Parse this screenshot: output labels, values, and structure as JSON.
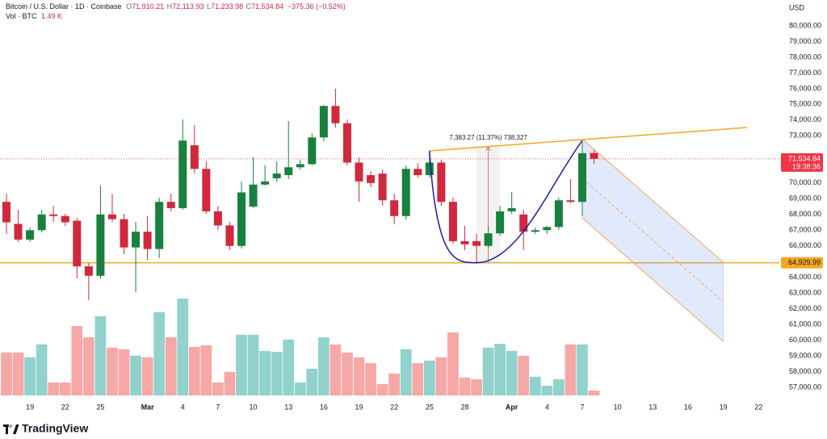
{
  "chart_data": {
    "type": "candlestick",
    "title": "Bitcoin / U.S. Dollar · 1D · Coinbase",
    "legend": {
      "open_key": "O",
      "open": "71,910.21",
      "high_key": "H",
      "high": "72,113.93",
      "low_key": "L",
      "low": "71,233.98",
      "close_key": "C",
      "close": "71,534.84",
      "change": "−375.36 (−0.52%)"
    },
    "volume_legend": {
      "label": "Vol · BTC",
      "value": "1.49 K"
    },
    "currency": "USD",
    "branding": "TradingView",
    "categories": [
      null,
      null,
      "19",
      null,
      null,
      "22",
      null,
      null,
      "25",
      null,
      null,
      null,
      "Mar",
      null,
      null,
      "4",
      null,
      null,
      "7",
      null,
      null,
      "10",
      null,
      null,
      "13",
      null,
      null,
      "16",
      null,
      null,
      "19",
      null,
      null,
      "22",
      null,
      null,
      "25",
      null,
      null,
      "28",
      null,
      null,
      null,
      "Apr",
      null,
      null,
      "4",
      null,
      null,
      "7",
      null,
      null,
      "10",
      null,
      null,
      "13",
      null,
      null,
      "16",
      null,
      null,
      "19",
      null,
      null,
      "22",
      null
    ],
    "open": [
      68800,
      67400,
      66400,
      67000,
      68000,
      67900,
      67600,
      64700,
      64100,
      68000,
      67700,
      65900,
      66900,
      65800,
      68800,
      68400,
      72400,
      70900,
      68200,
      67300,
      66000,
      68500,
      69900,
      70300,
      70500,
      71000,
      71200,
      72900,
      74900,
      73800,
      71300,
      70500,
      70600,
      68900,
      67900,
      70900,
      70500,
      71300,
      68800,
      66300,
      66300,
      66000,
      66800,
      68200,
      68000,
      66900,
      67000,
      67200,
      68900,
      68800,
      71910.21,
      null,
      null,
      null,
      null,
      null,
      null,
      null,
      null,
      null,
      null,
      null,
      null,
      null,
      null,
      null
    ],
    "high": [
      69320,
      68300,
      67170,
      68300,
      68550,
      68040,
      67780,
      64900,
      69840,
      69320,
      68040,
      67530,
      67890,
      69070,
      69320,
      74050,
      73690,
      71380,
      68550,
      67530,
      70090,
      71630,
      71120,
      71380,
      73940,
      71480,
      73170,
      74970,
      76000,
      74050,
      71630,
      70760,
      70860,
      69320,
      71120,
      71270,
      72040,
      71480,
      69070,
      67270,
      66760,
      67270,
      68550,
      69430,
      68300,
      67170,
      67270,
      69070,
      70250,
      72660,
      72113.93,
      null,
      null,
      null,
      null,
      null,
      null,
      null,
      null,
      null,
      null,
      null,
      null,
      null,
      null,
      null
    ],
    "low": [
      66760,
      66240,
      66240,
      66860,
      67530,
      67270,
      63930,
      62550,
      63930,
      67530,
      65470,
      63060,
      65110,
      65220,
      68190,
      68300,
      70610,
      68040,
      67010,
      65730,
      65830,
      68400,
      69840,
      70090,
      70250,
      70860,
      71120,
      72660,
      73530,
      71120,
      68810,
      69730,
      68550,
      67370,
      67680,
      70350,
      70350,
      68550,
      66140,
      65730,
      64960,
      65830,
      66650,
      68040,
      65730,
      66760,
      66760,
      67010,
      68710,
      67890,
      71233.98,
      null,
      null,
      null,
      null,
      null,
      null,
      null,
      null,
      null,
      null,
      null,
      null,
      null,
      null,
      null
    ],
    "close": [
      67500,
      66400,
      67000,
      68000,
      67900,
      67500,
      64700,
      64100,
      68000,
      67700,
      65900,
      66900,
      65800,
      68800,
      68400,
      72700,
      70900,
      68200,
      67300,
      66000,
      69400,
      69900,
      70100,
      70600,
      71000,
      71200,
      72900,
      74900,
      73800,
      71300,
      70100,
      70000,
      68900,
      67900,
      70900,
      70500,
      71300,
      68800,
      66300,
      66100,
      66000,
      66800,
      68200,
      68400,
      66900,
      67000,
      67200,
      68900,
      68800,
      71900,
      71534.84,
      null,
      null,
      null,
      null,
      null,
      null,
      null,
      null,
      null,
      null,
      null,
      null,
      null,
      null,
      null
    ],
    "volume": [
      13.3,
      13.3,
      11.8,
      15.8,
      4,
      4,
      21.5,
      18,
      24.5,
      14.8,
      14.3,
      12.3,
      11.8,
      25.8,
      18,
      30,
      15,
      15.5,
      4,
      7.3,
      18.8,
      18.8,
      13.8,
      13.5,
      17.3,
      4,
      8.3,
      18,
      15.8,
      13.3,
      11.8,
      10,
      3.5,
      6.8,
      14.3,
      10,
      10.8,
      11.8,
      19.5,
      5.5,
      5,
      14.8,
      16,
      13.8,
      12.3,
      5.8,
      3,
      5,
      15.8,
      15.8,
      1.49,
      null,
      null,
      null,
      null,
      null,
      null,
      null,
      null,
      null,
      null,
      null,
      null,
      null,
      null,
      null
    ],
    "volume_lim": [
      0,
      50
    ],
    "colors": {
      "up": "#17813d",
      "down": "#d0283c",
      "volume_up": "#92d2cc",
      "volume_down": "#f6a8a6"
    },
    "xlim": [
      -0.55,
      65.77
    ],
    "ylim": [
      56490,
      81640
    ],
    "yticks": [
      {
        "value": 57000,
        "label": "57,000.00"
      },
      {
        "value": 58000,
        "label": "58,000.00"
      },
      {
        "value": 59000,
        "label": "59,000.00"
      },
      {
        "value": 60000,
        "label": "60,000.00"
      },
      {
        "value": 61000,
        "label": "61,000.00"
      },
      {
        "value": 62000,
        "label": "62,000.00"
      },
      {
        "value": 63000,
        "label": "63,000.00"
      },
      {
        "value": 64000,
        "label": "64,000.00"
      },
      {
        "value": 66000,
        "label": "66,000.00"
      },
      {
        "value": 67000,
        "label": "67,000.00"
      },
      {
        "value": 68000,
        "label": "68,000.00"
      },
      {
        "value": 69000,
        "label": "69,000.00"
      },
      {
        "value": 70000,
        "label": "70,000.00"
      },
      {
        "value": 73000,
        "label": "73,000.00"
      },
      {
        "value": 74000,
        "label": "74,000.00"
      },
      {
        "value": 75000,
        "label": "75,000.00"
      },
      {
        "value": 76000,
        "label": "76,000.00"
      },
      {
        "value": 77000,
        "label": "77,000.00"
      },
      {
        "value": 78000,
        "label": "78,000.00"
      },
      {
        "value": 79000,
        "label": "79,000.00"
      },
      {
        "value": 80000,
        "label": "80,000.00"
      }
    ],
    "grid": false,
    "hline": {
      "value": 64929.99,
      "label": "64,929.99",
      "color": "#f5a623"
    },
    "last_price_label": "71,534.84",
    "countdown": "19:38:36",
    "trendline": {
      "start": [
        36,
        72044
      ],
      "end": [
        63,
        73530
      ],
      "color": "#f5a623"
    },
    "measure": {
      "label": "7,383.27 (11.37%) 738,327",
      "from_index": 40,
      "to_index": 42,
      "low": 64929.99,
      "high": 72313.26
    },
    "cup": {
      "start": [
        36,
        72044
      ],
      "bottom": [
        40,
        64929.99
      ],
      "end": [
        49,
        72700
      ],
      "color": "#1a1aa8"
    },
    "channel": {
      "start_index": 49,
      "end_index": 61,
      "top_start": 72800,
      "top_end": 64950,
      "bottom_start": 67780,
      "bottom_end": 59930,
      "color": "#f5a65b"
    }
  }
}
